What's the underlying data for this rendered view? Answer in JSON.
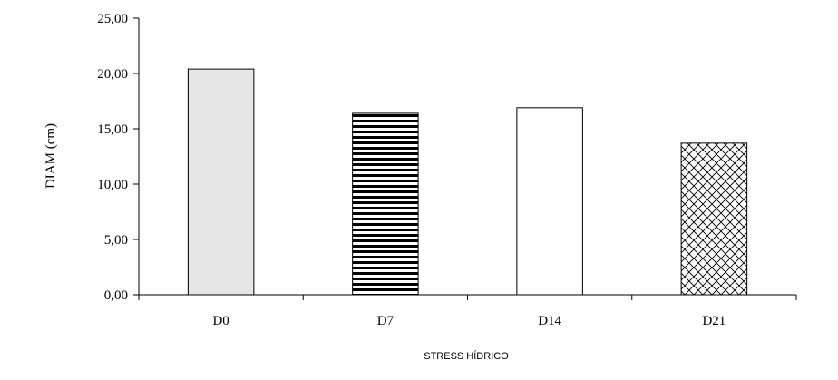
{
  "chart_data": {
    "type": "bar",
    "categories": [
      "D0",
      "D7",
      "D14",
      "D21"
    ],
    "values": [
      20.4,
      16.4,
      16.9,
      13.7
    ],
    "xlabel": "STRESS HÍDRICO",
    "ylabel": "DIAM (cm)",
    "ylim": [
      0,
      25
    ],
    "yticks": [
      "0,00",
      "5,00",
      "10,00",
      "15,00",
      "20,00",
      "25,00"
    ],
    "grid": false,
    "legend": "none",
    "bar_fills": [
      "light-gray",
      "horizontal-stripes",
      "white",
      "crosshatch"
    ]
  }
}
